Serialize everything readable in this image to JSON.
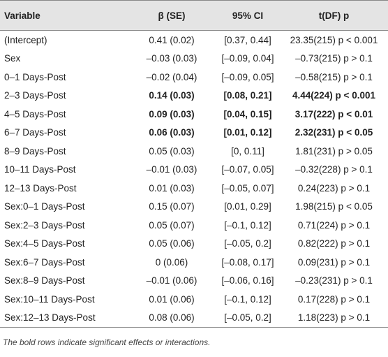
{
  "table": {
    "header": [
      "Variable",
      "β (SE)",
      "95% CI",
      "t(DF) p"
    ],
    "rows": [
      [
        "(Intercept)",
        "0.41 (0.02)",
        "[0.37, 0.44]",
        "23.35(215) p < 0.001"
      ],
      [
        "Sex",
        "–0.03 (0.03)",
        "[–0.09, 0.04]",
        "–0.73(215) p > 0.1"
      ],
      [
        "0–1 Days-Post",
        "–0.02 (0.04)",
        "[–0.09, 0.05]",
        "–0.58(215) p > 0.1"
      ],
      [
        "2–3 Days-Post",
        "0.14 (0.03)",
        "[0.08, 0.21]",
        "4.44(224) p < 0.001"
      ],
      [
        "4–5 Days-Post",
        "0.09 (0.03)",
        "[0.04, 0.15]",
        "3.17(222) p < 0.01"
      ],
      [
        "6–7 Days-Post",
        "0.06 (0.03)",
        "[0.01, 0.12]",
        "2.32(231) p < 0.05"
      ],
      [
        "8–9 Days-Post",
        "0.05 (0.03)",
        "[0, 0.11]",
        "1.81(231) p > 0.05"
      ],
      [
        "10–11 Days-Post",
        "–0.01 (0.03)",
        "[–0.07, 0.05]",
        "–0.32(228) p > 0.1"
      ],
      [
        "12–13 Days-Post",
        "0.01 (0.03)",
        "[–0.05, 0.07]",
        "0.24(223) p > 0.1"
      ],
      [
        "Sex:0–1 Days-Post",
        "0.15 (0.07)",
        "[0.01, 0.29]",
        "1.98(215) p < 0.05"
      ],
      [
        "Sex:2–3 Days-Post",
        "0.05 (0.07)",
        "[–0.1, 0.12]",
        "0.71(224) p > 0.1"
      ],
      [
        "Sex:4–5 Days-Post",
        "0.05 (0.06)",
        "[–0.05, 0.2]",
        "0.82(222) p > 0.1"
      ],
      [
        "Sex:6–7 Days-Post",
        "0 (0.06)",
        "[–0.08, 0.17]",
        "0.09(231) p > 0.1"
      ],
      [
        "Sex:8–9 Days-Post",
        "–0.01 (0.06)",
        "[–0.06, 0.16]",
        "–0.23(231) p > 0.1"
      ],
      [
        "Sex:10–11 Days-Post",
        "0.01 (0.06)",
        "[–0.1, 0.12]",
        "0.17(228) p > 0.1"
      ],
      [
        "Sex:12–13 Days-Post",
        "0.08 (0.06)",
        "[–0.05, 0.2]",
        "1.18(223) p > 0.1"
      ]
    ]
  },
  "caption": "The bold rows indicate significant effects or interactions."
}
